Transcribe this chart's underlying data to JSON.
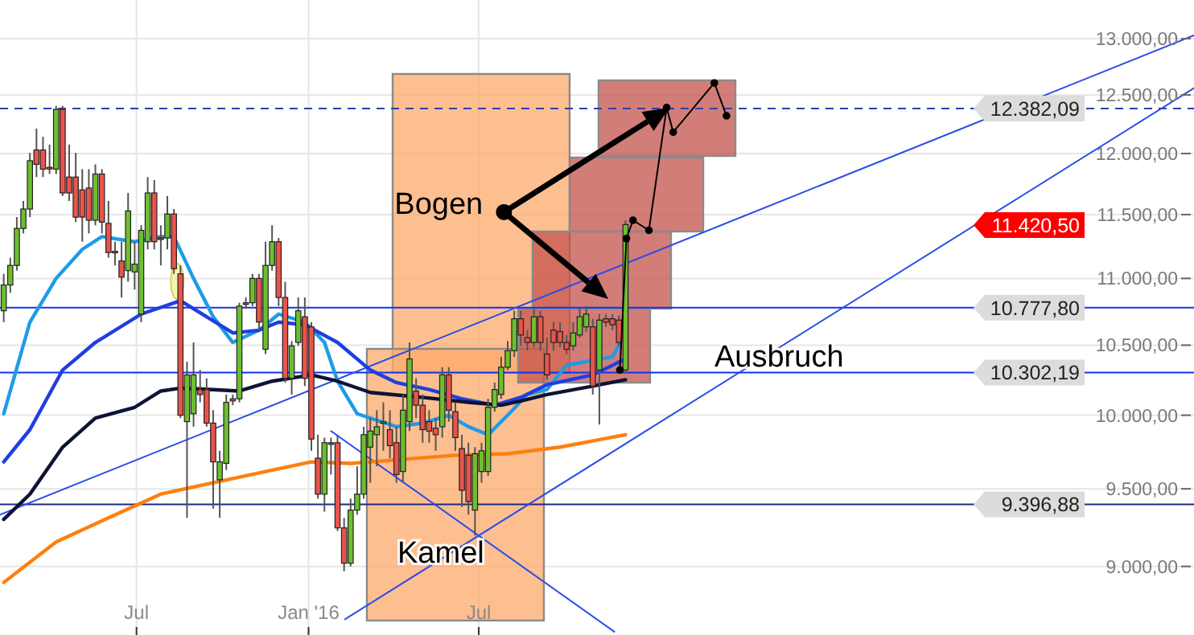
{
  "chart_data": {
    "type": "candlestick",
    "log": true,
    "grid": true,
    "xlim": [
      "2015-02-05",
      "2018-08-05"
    ],
    "xticks": [
      {
        "value": "2015-07-01",
        "label": "Jul"
      },
      {
        "value": "2016-01-01",
        "label": "Jan '16"
      },
      {
        "value": "2016-07-01",
        "label": "Jul"
      }
    ],
    "ylim": [
      8580,
      13355
    ],
    "yticks": [
      {
        "value": 9000,
        "label": "9.000,00"
      },
      {
        "value": 9500,
        "label": "9.500,00"
      },
      {
        "value": 10000,
        "label": "10.000,00"
      },
      {
        "value": 10500,
        "label": "10.500,00"
      },
      {
        "value": 11000,
        "label": "11.000,00"
      },
      {
        "value": 11500,
        "label": "11.500,00"
      },
      {
        "value": 12000,
        "label": "12.000,00"
      },
      {
        "value": 12500,
        "label": "12.500,00"
      },
      {
        "value": 13000,
        "label": "13.000,00"
      }
    ],
    "x": [
      "2015-02-09",
      "2015-02-16",
      "2015-02-23",
      "2015-03-02",
      "2015-03-09",
      "2015-03-16",
      "2015-03-23",
      "2015-03-30",
      "2015-04-06",
      "2015-04-13",
      "2015-04-20",
      "2015-04-27",
      "2015-05-04",
      "2015-05-11",
      "2015-05-18",
      "2015-05-25",
      "2015-06-01",
      "2015-06-08",
      "2015-06-15",
      "2015-06-22",
      "2015-06-29",
      "2015-07-06",
      "2015-07-13",
      "2015-07-20",
      "2015-07-27",
      "2015-08-03",
      "2015-08-10",
      "2015-08-17",
      "2015-08-24",
      "2015-08-31",
      "2015-09-07",
      "2015-09-14",
      "2015-09-21",
      "2015-09-28",
      "2015-10-05",
      "2015-10-12",
      "2015-10-19",
      "2015-10-26",
      "2015-11-02",
      "2015-11-09",
      "2015-11-16",
      "2015-11-23",
      "2015-11-30",
      "2015-12-07",
      "2015-12-14",
      "2015-12-21",
      "2015-12-28",
      "2016-01-04",
      "2016-01-11",
      "2016-01-18",
      "2016-01-25",
      "2016-02-01",
      "2016-02-08",
      "2016-02-15",
      "2016-02-22",
      "2016-02-29",
      "2016-03-07",
      "2016-03-14",
      "2016-03-21",
      "2016-03-28",
      "2016-04-04",
      "2016-04-11",
      "2016-04-18",
      "2016-04-25",
      "2016-05-02",
      "2016-05-09",
      "2016-05-16",
      "2016-05-23",
      "2016-05-30",
      "2016-06-06",
      "2016-06-13",
      "2016-06-20",
      "2016-06-27",
      "2016-07-04",
      "2016-07-11",
      "2016-07-18",
      "2016-07-25",
      "2016-08-01",
      "2016-08-08",
      "2016-08-15",
      "2016-08-22",
      "2016-08-29",
      "2016-09-05",
      "2016-09-12",
      "2016-09-19",
      "2016-09-26",
      "2016-10-03",
      "2016-10-10",
      "2016-10-17",
      "2016-10-24",
      "2016-10-31",
      "2016-11-07",
      "2016-11-14",
      "2016-11-21",
      "2016-11-28",
      "2016-12-05"
    ],
    "ohlc": [
      [
        10755,
        11035,
        10670,
        10950
      ],
      [
        10950,
        11160,
        10890,
        11100
      ],
      [
        11100,
        11480,
        11060,
        11390
      ],
      [
        11390,
        11610,
        11350,
        11545
      ],
      [
        11545,
        12005,
        11480,
        11940
      ],
      [
        12030,
        12210,
        11805,
        11910
      ],
      [
        12030,
        12140,
        11805,
        11870
      ],
      [
        11885,
        12075,
        11830,
        11880
      ],
      [
        11870,
        12405,
        11830,
        12375
      ],
      [
        12375,
        12405,
        11650,
        11675
      ],
      [
        11805,
        12075,
        11610,
        11675
      ],
      [
        11805,
        12005,
        11440,
        11480
      ],
      [
        11700,
        11870,
        11285,
        11480
      ],
      [
        11715,
        11870,
        11350,
        11455
      ],
      [
        11455,
        11910,
        11415,
        11830
      ],
      [
        11830,
        11870,
        11350,
        11440
      ],
      [
        11430,
        11610,
        11160,
        11200
      ],
      [
        11210,
        11285,
        11100,
        11200
      ],
      [
        11135,
        11285,
        10855,
        11010
      ],
      [
        11060,
        11675,
        10975,
        11530
      ],
      [
        11050,
        11285,
        10915,
        11110
      ],
      [
        10730,
        11415,
        10670,
        11375
      ],
      [
        11285,
        11805,
        11225,
        11675
      ],
      [
        11675,
        11780,
        11225,
        11285
      ],
      [
        11315,
        11415,
        11100,
        11310
      ],
      [
        11315,
        11650,
        11225,
        11505
      ],
      [
        11505,
        11545,
        11035,
        11075
      ],
      [
        11035,
        11100,
        9980,
        10000
      ],
      [
        9955,
        10380,
        9310,
        10285
      ],
      [
        10010,
        10520,
        9920,
        10285
      ],
      [
        10180,
        10320,
        10090,
        10145
      ],
      [
        10180,
        10260,
        9920,
        9945
      ],
      [
        9945,
        10035,
        9370,
        9680
      ],
      [
        9560,
        9755,
        9310,
        9680
      ],
      [
        9670,
        10145,
        9625,
        10090
      ],
      [
        10115,
        10145,
        10070,
        10100
      ],
      [
        10115,
        10815,
        10090,
        10790
      ],
      [
        10815,
        10855,
        10770,
        10805
      ],
      [
        10815,
        11035,
        10790,
        11000
      ],
      [
        11000,
        11035,
        10610,
        10670
      ],
      [
        10470,
        11285,
        10435,
        11100
      ],
      [
        11100,
        11415,
        11060,
        11285
      ],
      [
        11285,
        11315,
        10790,
        10855
      ],
      [
        10855,
        10975,
        10230,
        10260
      ],
      [
        10260,
        10530,
        10145,
        10495
      ],
      [
        10520,
        10855,
        10495,
        10755
      ],
      [
        10710,
        10855,
        10205,
        10260
      ],
      [
        10635,
        10670,
        9755,
        9835
      ],
      [
        9705,
        9865,
        9435,
        9465
      ],
      [
        9465,
        9845,
        9350,
        9810
      ],
      [
        9810,
        9845,
        9595,
        9800
      ],
      [
        9810,
        9865,
        9225,
        9245
      ],
      [
        9245,
        9310,
        8970,
        9020
      ],
      [
        9020,
        9435,
        9000,
        9360
      ],
      [
        9360,
        9650,
        9330,
        9465
      ],
      [
        9465,
        9920,
        9435,
        9865
      ],
      [
        9780,
        9980,
        9540,
        9890
      ],
      [
        9865,
        10035,
        9650,
        9920
      ],
      [
        9945,
        10090,
        9755,
        9955
      ],
      [
        9900,
        10035,
        9705,
        9790
      ],
      [
        9810,
        9920,
        9540,
        9595
      ],
      [
        9615,
        10145,
        9540,
        10035
      ],
      [
        9955,
        10520,
        9890,
        10400
      ],
      [
        10170,
        10260,
        9980,
        10070
      ],
      [
        10070,
        10145,
        9810,
        9900
      ],
      [
        9955,
        10035,
        9810,
        9890
      ],
      [
        9910,
        9980,
        9755,
        9865
      ],
      [
        9920,
        10340,
        9845,
        10285
      ],
      [
        10285,
        10340,
        9955,
        10035
      ],
      [
        10025,
        10090,
        9755,
        9845
      ],
      [
        9770,
        9865,
        9380,
        9490
      ],
      [
        9725,
        9810,
        9330,
        9415
      ],
      [
        9360,
        9780,
        9195,
        9735
      ],
      [
        9615,
        9810,
        9540,
        9755
      ],
      [
        9615,
        10115,
        9585,
        10055
      ],
      [
        10055,
        10230,
        10025,
        10180
      ],
      [
        10145,
        10415,
        10115,
        10340
      ],
      [
        10340,
        10530,
        10320,
        10460
      ],
      [
        10460,
        10755,
        10415,
        10695
      ],
      [
        10695,
        10755,
        10495,
        10575
      ],
      [
        10555,
        10610,
        10460,
        10520
      ],
      [
        10520,
        10770,
        10485,
        10710
      ],
      [
        10710,
        10755,
        10460,
        10520
      ],
      [
        10435,
        10555,
        10250,
        10285
      ],
      [
        10610,
        10670,
        10460,
        10520
      ],
      [
        10600,
        10670,
        10485,
        10520
      ],
      [
        10520,
        10575,
        10435,
        10470
      ],
      [
        10495,
        10670,
        10460,
        10590
      ],
      [
        10575,
        10770,
        10555,
        10710
      ],
      [
        10635,
        10790,
        10600,
        10730
      ],
      [
        10635,
        10695,
        10145,
        10205
      ],
      [
        10320,
        10730,
        9935,
        10685
      ],
      [
        10695,
        10730,
        10635,
        10670
      ],
      [
        10695,
        10730,
        10610,
        10650
      ],
      [
        10685,
        10720,
        10495,
        10520
      ],
      [
        10320,
        11455,
        10295,
        11420.5
      ]
    ],
    "colors": [
      "#6cbf2f",
      "#6cbf2f",
      "#6cbf2f",
      "#6cbf2f",
      "#6cbf2f",
      "#e9544c",
      "#e9544c",
      "#e9544c",
      "#6cbf2f",
      "#e9544c",
      "#e9544c",
      "#e9544c",
      "#e9544c",
      "#e9544c",
      "#6cbf2f",
      "#e9544c",
      "#e9544c",
      "#e9544c",
      "#e9544c",
      "#6cbf2f",
      "#6cbf2f",
      "#6cbf2f",
      "#6cbf2f",
      "#e9544c",
      "#e9544c",
      "#6cbf2f",
      "#e9544c",
      "#e9544c",
      "#6cbf2f",
      "#6cbf2f",
      "#e9544c",
      "#e9544c",
      "#e9544c",
      "#6cbf2f",
      "#6cbf2f",
      "#e9544c",
      "#6cbf2f",
      "#e9544c",
      "#6cbf2f",
      "#e9544c",
      "#6cbf2f",
      "#6cbf2f",
      "#e9544c",
      "#e9544c",
      "#6cbf2f",
      "#6cbf2f",
      "#e9544c",
      "#e9544c",
      "#e9544c",
      "#6cbf2f",
      "#e9544c",
      "#e9544c",
      "#e9544c",
      "#6cbf2f",
      "#6cbf2f",
      "#6cbf2f",
      "#6cbf2f",
      "#6cbf2f",
      "#6cbf2f",
      "#e9544c",
      "#e9544c",
      "#6cbf2f",
      "#6cbf2f",
      "#e9544c",
      "#e9544c",
      "#e9544c",
      "#e9544c",
      "#6cbf2f",
      "#e9544c",
      "#e9544c",
      "#e9544c",
      "#e9544c",
      "#6cbf2f",
      "#6cbf2f",
      "#6cbf2f",
      "#6cbf2f",
      "#6cbf2f",
      "#6cbf2f",
      "#6cbf2f",
      "#e9544c",
      "#e9544c",
      "#6cbf2f",
      "#e9544c",
      "#e9544c",
      "#e9544c",
      "#e9544c",
      "#e9544c",
      "#6cbf2f",
      "#6cbf2f",
      "#6cbf2f",
      "#e9544c",
      "#6cbf2f",
      "#e9544c",
      "#e9544c",
      "#e9544c",
      "#6cbf2f"
    ],
    "series": [
      {
        "type": "line",
        "color": "#1e9be8",
        "x": [
          "2015-02-09",
          "2015-03-09",
          "2015-04-06",
          "2015-05-04",
          "2015-05-25",
          "2015-06-29",
          "2015-07-27",
          "2015-08-10",
          "2015-08-31",
          "2015-09-21",
          "2015-10-12",
          "2015-11-09",
          "2015-11-30",
          "2015-12-28",
          "2016-01-18",
          "2016-02-01",
          "2016-02-22",
          "2016-03-07",
          "2016-04-04",
          "2016-05-02",
          "2016-05-30",
          "2016-06-20",
          "2016-07-11",
          "2016-08-01",
          "2016-08-22",
          "2016-09-12",
          "2016-10-03",
          "2016-11-21",
          "2016-11-28"
        ],
        "values": [
          10010,
          10670,
          11000,
          11225,
          11325,
          11285,
          11325,
          11325,
          11000,
          10710,
          10520,
          10610,
          10730,
          10670,
          10520,
          10240,
          10010,
          9980,
          9920,
          9945,
          10000,
          9920,
          9865,
          10000,
          10145,
          10180,
          10355,
          10415,
          10500
        ]
      },
      {
        "type": "line",
        "color": "#1f3fe0",
        "x": [
          "2015-02-09",
          "2015-03-09",
          "2015-04-13",
          "2015-05-18",
          "2015-07-06",
          "2015-08-17",
          "2015-09-14",
          "2015-10-12",
          "2015-11-09",
          "2015-11-30",
          "2015-12-28",
          "2016-02-01",
          "2016-03-07",
          "2016-04-04",
          "2016-05-09",
          "2016-06-13",
          "2016-07-18",
          "2016-08-15",
          "2016-09-12",
          "2016-10-31",
          "2016-12-05"
        ],
        "values": [
          9680,
          9900,
          10320,
          10520,
          10730,
          10830,
          10710,
          10590,
          10610,
          10670,
          10650,
          10520,
          10320,
          10230,
          10180,
          10115,
          10070,
          10125,
          10215,
          10285,
          10400
        ]
      },
      {
        "type": "line",
        "color": "#0d1433",
        "x": [
          "2015-02-09",
          "2015-03-09",
          "2015-04-13",
          "2015-05-18",
          "2015-06-29",
          "2015-07-27",
          "2015-08-17",
          "2015-09-21",
          "2015-10-19",
          "2015-11-23",
          "2016-01-04",
          "2016-02-01",
          "2016-03-07",
          "2016-05-02",
          "2016-06-20",
          "2016-07-25",
          "2016-08-15",
          "2016-09-12",
          "2016-10-31",
          "2016-12-05"
        ],
        "values": [
          9300,
          9465,
          9780,
          9980,
          10055,
          10170,
          10190,
          10180,
          10170,
          10240,
          10285,
          10240,
          10160,
          10125,
          10090,
          10070,
          10100,
          10145,
          10205,
          10250
        ]
      },
      {
        "type": "line",
        "color": "#ff7f0e",
        "x": [
          "2015-02-09",
          "2015-04-06",
          "2015-06-01",
          "2015-07-27",
          "2015-09-21",
          "2015-11-23",
          "2016-01-04",
          "2016-02-15",
          "2016-03-07",
          "2016-06-06",
          "2016-08-01",
          "2016-09-26",
          "2016-12-05"
        ],
        "values": [
          8900,
          9155,
          9310,
          9465,
          9540,
          9625,
          9680,
          9670,
          9680,
          9725,
          9735,
          9780,
          9865
        ]
      },
      {
        "type": "line",
        "color": "#2a4de8",
        "x": [
          "2015-02-05",
          "2018-08-05"
        ],
        "values": [
          9330,
          13030
        ]
      },
      {
        "type": "line",
        "color": "#2a4de8",
        "x": [
          "2016-02-09",
          "2018-08-05"
        ],
        "values": [
          8675,
          12560
        ]
      },
      {
        "type": "line",
        "color": "#2a4de8",
        "x": [
          "2016-01-25",
          "2016-11-23"
        ],
        "values": [
          9890,
          8600
        ]
      },
      {
        "type": "line",
        "color": "#000000",
        "marker": "circle",
        "x": [
          "2016-11-29",
          "2016-12-06",
          "2016-12-13",
          "2016-12-30",
          "2017-01-18",
          "2017-01-25",
          "2017-03-10",
          "2017-03-23"
        ],
        "values": [
          10320,
          11310,
          11455,
          11375,
          12390,
          12180,
          12605,
          12320
        ]
      }
    ],
    "ref_lines": [
      {
        "axis": "y",
        "value": 12382.09,
        "label": "12.382,09",
        "color": "#2a3fb0",
        "line_style": "dashed"
      },
      {
        "axis": "y",
        "value": 10777.8,
        "label": "10.777,80",
        "color": "#1133ee",
        "line_style": "solid"
      },
      {
        "axis": "y",
        "value": 10302.19,
        "label": "10.302,19",
        "color": "#1133ee",
        "line_style": "solid"
      },
      {
        "axis": "y",
        "value": 9396.88,
        "label": "9.396,88",
        "color": "#1a2a80",
        "line_style": "solid"
      }
    ],
    "annotations": [
      {
        "text": "Bogen",
        "x": "2016-07-28",
        "y": 11520
      },
      "Kamel",
      "Ausbruch",
      "11.420,50"
    ]
  }
}
